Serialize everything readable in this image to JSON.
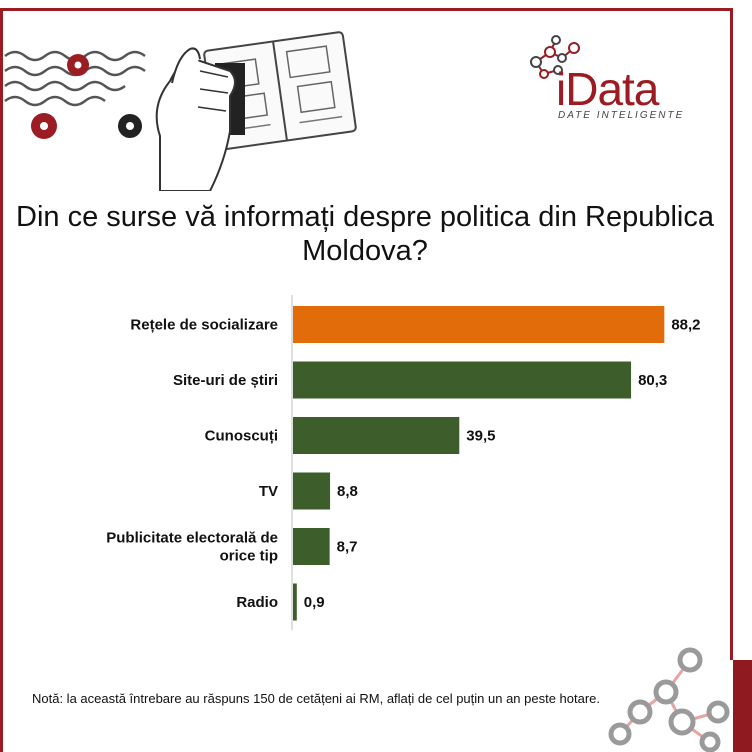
{
  "logo": {
    "name": "iData",
    "tagline": "DATE INTELIGENTE"
  },
  "illustration": {
    "icon": "passport-stamp-icon"
  },
  "chart_data": {
    "type": "bar",
    "orientation": "horizontal",
    "title": "Din ce surse vă informați despre politica din Republica Moldova?",
    "categories": [
      "Rețele de socializare",
      "Site-uri de știri",
      "Cunoscuți",
      "TV",
      "Publicitate electorală de orice tip",
      "Radio"
    ],
    "values": [
      88.2,
      80.3,
      39.5,
      8.8,
      8.7,
      0.9
    ],
    "value_labels": [
      "88,2",
      "80,3",
      "39,5",
      "8,8",
      "8,7",
      "0,9"
    ],
    "colors": [
      "#e36c0a",
      "#3d5e2a",
      "#3d5e2a",
      "#3d5e2a",
      "#3d5e2a",
      "#3d5e2a"
    ],
    "xlim": [
      0,
      100
    ],
    "grid": false
  },
  "note": "Notă: la această întrebare au răspuns 150 de cetățeni ai RM, aflați de cel puțin un an peste hotare."
}
